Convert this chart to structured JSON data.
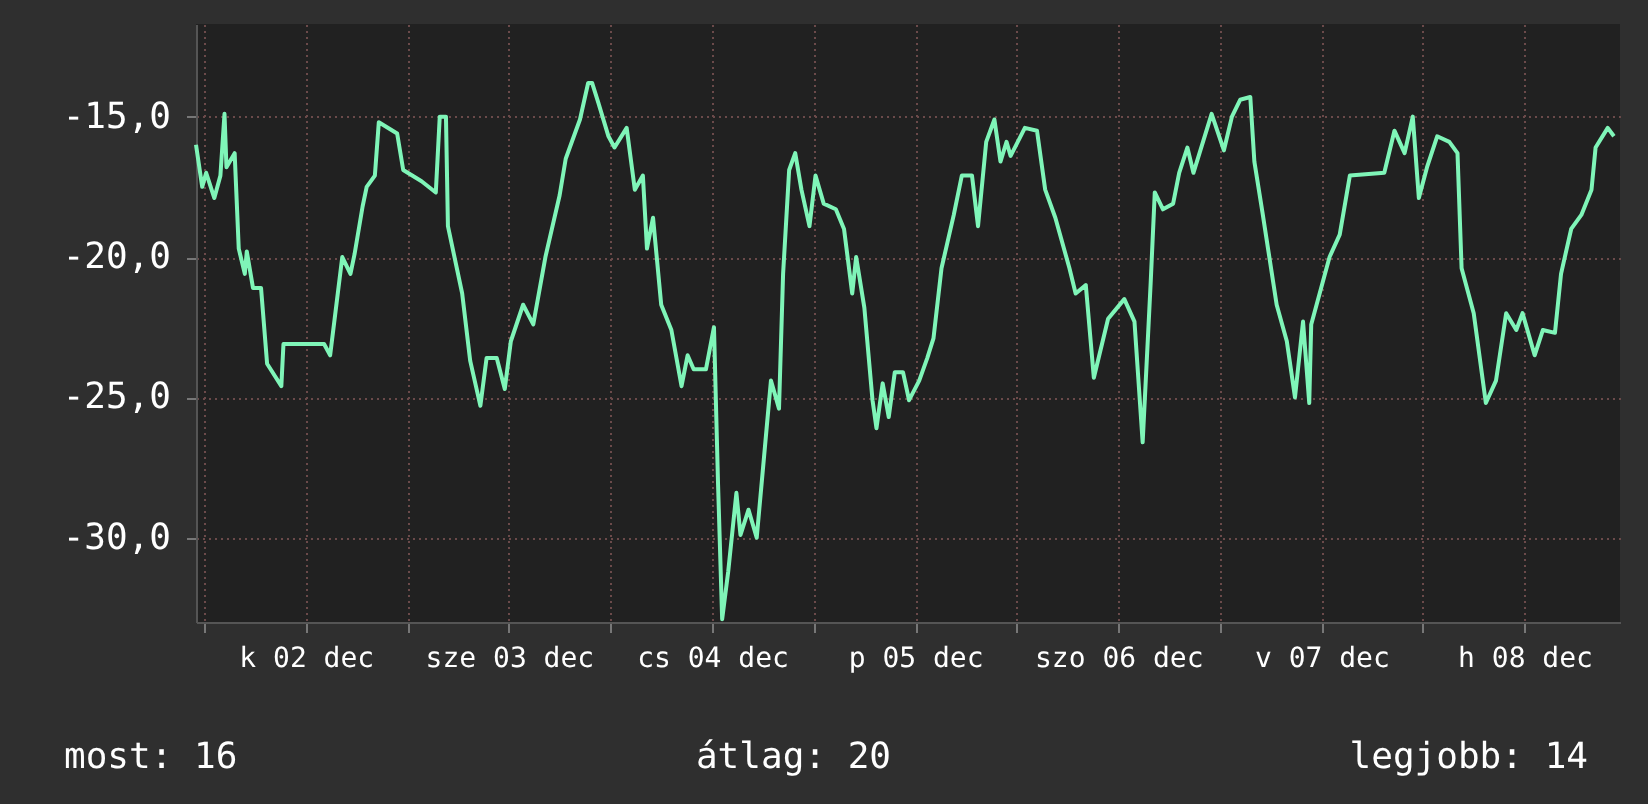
{
  "chart_data": {
    "type": "line",
    "series": [
      {
        "color": "#7ff5b8",
        "x": [
          "--12-01T23:02",
          "--12-01T23:46",
          "--12-02T00:14",
          "--12-02T01:12",
          "--12-02T01:55",
          "--12-02T02:24",
          "--12-02T02:38",
          "--12-02T03:36",
          "--12-02T04:05",
          "--12-02T04:48",
          "--12-02T05:02",
          "--12-02T05:46",
          "--12-02T06:43",
          "--12-02T07:26",
          "--12-02T09:07",
          "--12-02T09:22",
          "--12-02T14:10",
          "--12-02T14:53",
          "--12-02T16:19",
          "--12-02T17:17",
          "--12-02T17:46",
          "--12-02T18:43",
          "--12-02T19:12",
          "--12-02T20:10",
          "--12-02T20:38",
          "--12-02T22:48",
          "--12-02T23:31",
          "--12-03T01:41",
          "--12-03T03:22",
          "--12-03T03:50",
          "--12-03T04:34",
          "--12-03T04:48",
          "--12-03T06:29",
          "--12-03T07:26",
          "--12-03T08:38",
          "--12-03T09:22",
          "--12-03T10:34",
          "--12-03T11:31",
          "--12-03T12:14",
          "--12-03T13:41",
          "--12-03T14:53",
          "--12-03T16:19",
          "--12-03T18:00",
          "--12-03T18:43",
          "--12-03T20:24",
          "--12-03T21:22",
          "--12-03T21:50",
          "--12-03T22:34",
          "--12-03T23:46",
          "--12-04T00:29",
          "--12-04T01:55",
          "--12-04T02:53",
          "--12-04T03:50",
          "--12-04T04:19",
          "--12-04T05:02",
          "--12-04T06:00",
          "--12-04T07:12",
          "--12-04T08:24",
          "--12-04T09:07",
          "--12-04T09:50",
          "--12-04T11:17",
          "--12-04T12:14",
          "--12-04T12:43",
          "--12-04T13:12",
          "--12-04T13:55",
          "--12-04T14:53",
          "--12-04T15:22",
          "--12-04T16:19",
          "--12-04T17:17",
          "--12-04T18:29",
          "--12-04T18:58",
          "--12-04T19:55",
          "--12-04T20:24",
          "--12-04T21:07",
          "--12-04T21:50",
          "--12-04T22:34",
          "--12-04T23:31",
          "--12-05T00:14",
          "--12-05T01:12",
          "--12-05T02:38",
          "--12-05T03:36",
          "--12-05T04:34",
          "--12-05T05:02",
          "--12-05T06:00",
          "--12-05T06:58",
          "--12-05T07:26",
          "--12-05T08:10",
          "--12-05T08:53",
          "--12-05T09:36",
          "--12-05T10:34",
          "--12-05T11:17",
          "--12-05T12:29",
          "--12-05T13:26",
          "--12-05T14:10",
          "--12-05T15:07",
          "--12-05T16:34",
          "--12-05T17:31",
          "--12-05T18:43",
          "--12-05T19:26",
          "--12-05T20:24",
          "--12-05T21:22",
          "--12-05T22:05",
          "--12-05T22:48",
          "--12-05T23:17",
          "--12-06T00:58",
          "--12-06T02:24",
          "--12-06T03:22",
          "--12-06T04:34",
          "--12-06T06:14",
          "--12-06T06:58",
          "--12-06T08:10",
          "--12-06T09:07",
          "--12-06T10:48",
          "--12-06T12:43",
          "--12-06T13:55",
          "--12-06T14:53",
          "--12-06T15:50",
          "--12-06T16:19",
          "--12-06T17:17",
          "--12-06T18:29",
          "--12-06T19:12",
          "--12-06T20:10",
          "--12-06T20:53",
          "--12-06T23:02",
          "--12-07T00:29",
          "--12-07T01:26",
          "--12-07T02:24",
          "--12-07T03:36",
          "--12-07T04:05",
          "--12-07T05:02",
          "--12-07T06:43",
          "--12-07T07:55",
          "--12-07T08:53",
          "--12-07T09:50",
          "--12-07T10:34",
          "--12-07T10:48",
          "--12-07T12:58",
          "--12-07T14:10",
          "--12-07T15:22",
          "--12-07T19:26",
          "--12-07T20:38",
          "--12-07T21:50",
          "--12-07T22:48",
          "--12-07T23:31",
          "--12-08T00:29",
          "--12-08T01:41",
          "--12-08T03:07",
          "--12-08T04:05",
          "--12-08T04:34",
          "--12-08T06:00",
          "--12-08T07:26",
          "--12-08T08:38",
          "--12-08T09:50",
          "--12-08T11:02",
          "--12-08T11:46",
          "--12-08T13:12",
          "--12-08T14:10",
          "--12-08T15:36",
          "--12-08T16:19",
          "--12-08T17:31",
          "--12-08T18:43",
          "--12-08T19:55",
          "--12-08T20:24",
          "--12-08T21:50",
          "--12-08T22:34"
        ],
        "values": [
          -16.0,
          -17.5,
          -17.0,
          -17.9,
          -17.1,
          -14.9,
          -16.8,
          -16.3,
          -19.7,
          -20.6,
          -19.8,
          -21.1,
          -21.1,
          -23.8,
          -24.6,
          -23.1,
          -23.1,
          -23.5,
          -20.0,
          -20.6,
          -19.9,
          -18.2,
          -17.5,
          -17.1,
          -15.2,
          -15.6,
          -16.9,
          -17.3,
          -17.7,
          -15.0,
          -15.0,
          -18.9,
          -21.3,
          -23.7,
          -25.3,
          -23.6,
          -23.6,
          -24.7,
          -23.0,
          -21.7,
          -22.4,
          -20.0,
          -17.8,
          -16.5,
          -15.1,
          -13.8,
          -13.8,
          -14.5,
          -15.7,
          -16.1,
          -15.4,
          -17.6,
          -17.1,
          -19.7,
          -18.6,
          -21.7,
          -22.6,
          -24.6,
          -23.5,
          -24.0,
          -24.0,
          -22.5,
          -28.1,
          -32.9,
          -31.2,
          -28.4,
          -29.9,
          -29.0,
          -30.0,
          -26.0,
          -24.4,
          -25.4,
          -20.6,
          -16.9,
          -16.3,
          -17.6,
          -18.9,
          -17.1,
          -18.1,
          -18.3,
          -19.0,
          -21.3,
          -20.0,
          -21.8,
          -25.1,
          -26.1,
          -24.5,
          -25.7,
          -24.1,
          -24.1,
          -25.1,
          -24.4,
          -23.6,
          -22.9,
          -20.4,
          -18.5,
          -17.1,
          -17.1,
          -18.9,
          -15.9,
          -15.1,
          -16.6,
          -15.9,
          -16.4,
          -15.4,
          -15.5,
          -17.6,
          -18.6,
          -20.4,
          -21.3,
          -21.0,
          -24.3,
          -22.2,
          -21.5,
          -22.3,
          -26.6,
          -20.9,
          -17.7,
          -18.3,
          -18.1,
          -17.0,
          -16.1,
          -17.0,
          -14.9,
          -16.2,
          -15.0,
          -14.4,
          -14.3,
          -16.6,
          -18.4,
          -21.7,
          -23.0,
          -25.0,
          -22.3,
          -25.2,
          -22.4,
          -20.0,
          -19.2,
          -17.1,
          -17.0,
          -15.5,
          -16.3,
          -15.0,
          -17.9,
          -16.8,
          -15.7,
          -15.9,
          -16.3,
          -20.4,
          -22.0,
          -25.2,
          -24.4,
          -22.0,
          -22.6,
          -22.0,
          -23.5,
          -22.6,
          -22.7,
          -20.6,
          -19.0,
          -18.5,
          -17.6,
          -16.1,
          -15.4,
          -15.7
        ]
      }
    ],
    "xlim": [
      "--12-01T23:02",
      "--12-08T23:17"
    ],
    "xticks": [
      {
        "value": "--12-02T00:00",
        "label": null
      },
      {
        "value": "--12-02T12:00",
        "label": "k 02 dec"
      },
      {
        "value": "--12-03T00:00",
        "label": null
      },
      {
        "value": "--12-03T12:00",
        "label": "sze 03 dec"
      },
      {
        "value": "--12-04T00:00",
        "label": null
      },
      {
        "value": "--12-04T12:00",
        "label": "cs 04 dec"
      },
      {
        "value": "--12-05T00:00",
        "label": null
      },
      {
        "value": "--12-05T12:00",
        "label": "p 05 dec"
      },
      {
        "value": "--12-06T00:00",
        "label": null
      },
      {
        "value": "--12-06T12:00",
        "label": "szo 06 dec"
      },
      {
        "value": "--12-07T00:00",
        "label": null
      },
      {
        "value": "--12-07T12:00",
        "label": "v 07 dec"
      },
      {
        "value": "--12-08T00:00",
        "label": null
      },
      {
        "value": "--12-08T12:00",
        "label": "h 08 dec"
      }
    ],
    "ylim": [
      -33,
      -11.7
    ],
    "yticks": [
      {
        "value": -30,
        "label": "-30,0"
      },
      {
        "value": -25,
        "label": "-25,0"
      },
      {
        "value": -20,
        "label": "-20,0"
      },
      {
        "value": -15,
        "label": "-15,0"
      }
    ],
    "grid": true,
    "line_style": "solid",
    "annotations": [
      "most: 16",
      "átlag: 20",
      "legjobb: 14"
    ]
  }
}
